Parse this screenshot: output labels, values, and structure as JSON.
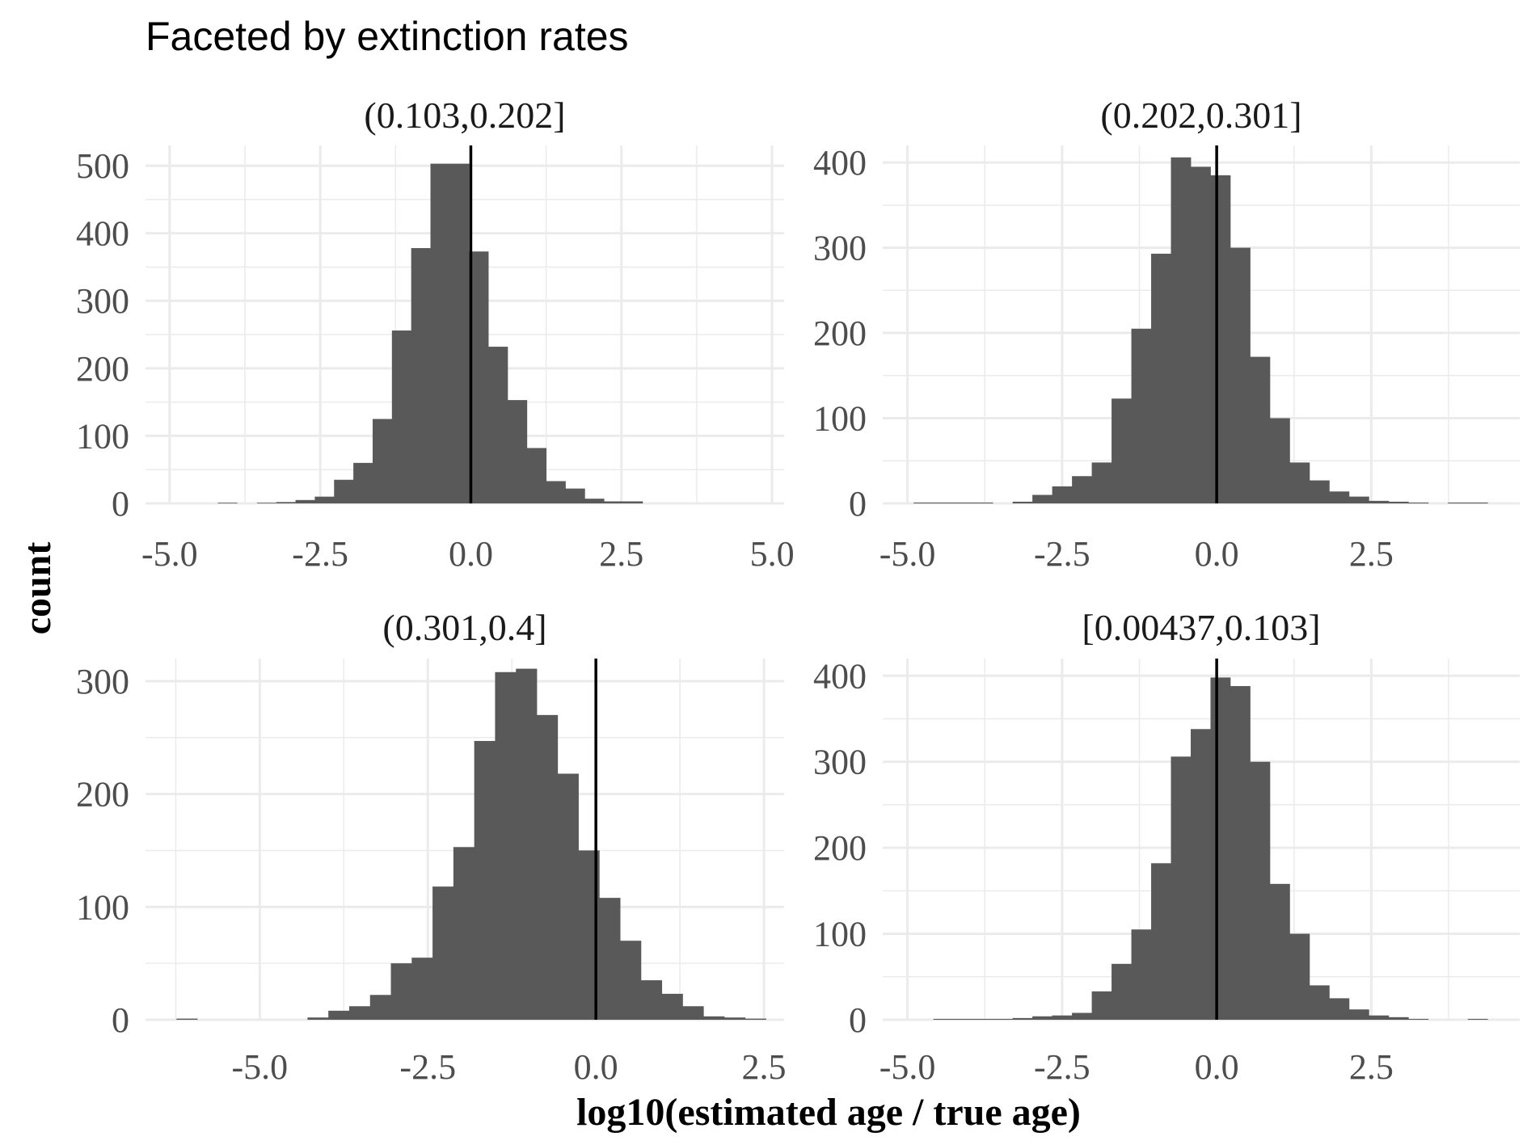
{
  "chart_data": {
    "type": "bar",
    "title": "Faceted by extinction rates",
    "xlabel": "log10(estimated age / true age)",
    "ylabel": "count",
    "reference_line_x": 0,
    "bar_color": "#595959",
    "grid": true,
    "facets": [
      {
        "label": "(0.103,0.202]",
        "xlim": [
          -5.4,
          5.2
        ],
        "ylim": [
          0,
          530
        ],
        "xticks": [
          -5.0,
          -2.5,
          0.0,
          2.5,
          5.0
        ],
        "xtick_labels": [
          "-5.0",
          "-2.5",
          "0.0",
          "2.5",
          "5.0"
        ],
        "yticks": [
          0,
          100,
          200,
          300,
          400,
          500
        ],
        "ytick_labels": [
          "0",
          "100",
          "200",
          "300",
          "400",
          "500"
        ],
        "bin_width": 0.32,
        "bins": [
          [
            -4.2,
            1
          ],
          [
            -3.55,
            1
          ],
          [
            -3.23,
            2
          ],
          [
            -2.91,
            5
          ],
          [
            -2.59,
            10
          ],
          [
            -2.27,
            35
          ],
          [
            -1.95,
            60
          ],
          [
            -1.63,
            125
          ],
          [
            -1.31,
            256
          ],
          [
            -0.99,
            378
          ],
          [
            -0.67,
            503
          ],
          [
            -0.35,
            503
          ],
          [
            -0.03,
            373
          ],
          [
            0.29,
            232
          ],
          [
            0.61,
            153
          ],
          [
            0.93,
            82
          ],
          [
            1.25,
            33
          ],
          [
            1.57,
            22
          ],
          [
            1.89,
            7
          ],
          [
            2.21,
            3
          ],
          [
            2.53,
            3
          ]
        ]
      },
      {
        "label": "(0.202,0.301]",
        "xlim": [
          -5.4,
          4.9
        ],
        "ylim": [
          0,
          420
        ],
        "xticks": [
          -5.0,
          -2.5,
          0.0,
          2.5
        ],
        "xtick_labels": [
          "-5.0",
          "-2.5",
          "0.0",
          "2.5"
        ],
        "yticks": [
          0,
          100,
          200,
          300,
          400
        ],
        "ytick_labels": [
          "0",
          "100",
          "200",
          "300",
          "400"
        ],
        "bin_width": 0.32,
        "bins": [
          [
            -4.9,
            1
          ],
          [
            -4.58,
            1
          ],
          [
            -4.26,
            1
          ],
          [
            -3.94,
            1
          ],
          [
            -3.3,
            2
          ],
          [
            -2.98,
            10
          ],
          [
            -2.66,
            20
          ],
          [
            -2.34,
            32
          ],
          [
            -2.02,
            48
          ],
          [
            -1.7,
            123
          ],
          [
            -1.38,
            205
          ],
          [
            -1.06,
            293
          ],
          [
            -0.74,
            406
          ],
          [
            -0.42,
            395
          ],
          [
            -0.1,
            385
          ],
          [
            0.22,
            300
          ],
          [
            0.54,
            172
          ],
          [
            0.86,
            100
          ],
          [
            1.18,
            48
          ],
          [
            1.5,
            27
          ],
          [
            1.82,
            14
          ],
          [
            2.14,
            8
          ],
          [
            2.46,
            3
          ],
          [
            2.78,
            2
          ],
          [
            3.1,
            1
          ],
          [
            3.74,
            1
          ],
          [
            4.06,
            1
          ]
        ]
      },
      {
        "label": "(0.301,0.4]",
        "xlim": [
          -6.7,
          2.8
        ],
        "ylim": [
          0,
          320
        ],
        "xticks": [
          -5.0,
          -2.5,
          0.0,
          2.5
        ],
        "xtick_labels": [
          "-5.0",
          "-2.5",
          "0.0",
          "2.5"
        ],
        "yticks": [
          0,
          100,
          200,
          300
        ],
        "ytick_labels": [
          "0",
          "100",
          "200",
          "300"
        ],
        "bin_width": 0.31,
        "bins": [
          [
            -6.24,
            1
          ],
          [
            -4.29,
            2
          ],
          [
            -3.98,
            8
          ],
          [
            -3.67,
            12
          ],
          [
            -3.36,
            22
          ],
          [
            -3.05,
            50
          ],
          [
            -2.74,
            55
          ],
          [
            -2.43,
            118
          ],
          [
            -2.12,
            153
          ],
          [
            -1.81,
            247
          ],
          [
            -1.5,
            308
          ],
          [
            -1.19,
            311
          ],
          [
            -0.88,
            270
          ],
          [
            -0.57,
            218
          ],
          [
            -0.26,
            150
          ],
          [
            0.05,
            108
          ],
          [
            0.36,
            70
          ],
          [
            0.67,
            35
          ],
          [
            0.98,
            23
          ],
          [
            1.29,
            12
          ],
          [
            1.6,
            3
          ],
          [
            1.91,
            2
          ],
          [
            2.22,
            1
          ]
        ]
      },
      {
        "label": "[0.00437,0.103]",
        "xlim": [
          -5.4,
          4.9
        ],
        "ylim": [
          0,
          420
        ],
        "xticks": [
          -5.0,
          -2.5,
          0.0,
          2.5
        ],
        "xtick_labels": [
          "-5.0",
          "-2.5",
          "0.0",
          "2.5"
        ],
        "yticks": [
          0,
          100,
          200,
          300,
          400
        ],
        "ytick_labels": [
          "0",
          "100",
          "200",
          "300",
          "400"
        ],
        "bin_width": 0.32,
        "bins": [
          [
            -4.58,
            1
          ],
          [
            -4.26,
            1
          ],
          [
            -3.94,
            1
          ],
          [
            -3.62,
            1
          ],
          [
            -3.3,
            2
          ],
          [
            -2.98,
            4
          ],
          [
            -2.66,
            5
          ],
          [
            -2.34,
            8
          ],
          [
            -2.02,
            33
          ],
          [
            -1.7,
            65
          ],
          [
            -1.38,
            105
          ],
          [
            -1.06,
            182
          ],
          [
            -0.74,
            306
          ],
          [
            -0.42,
            338
          ],
          [
            -0.1,
            398
          ],
          [
            0.22,
            388
          ],
          [
            0.54,
            300
          ],
          [
            0.86,
            158
          ],
          [
            1.18,
            100
          ],
          [
            1.5,
            40
          ],
          [
            1.82,
            25
          ],
          [
            2.14,
            12
          ],
          [
            2.46,
            5
          ],
          [
            2.78,
            3
          ],
          [
            3.1,
            1
          ],
          [
            4.06,
            1
          ]
        ]
      }
    ]
  }
}
